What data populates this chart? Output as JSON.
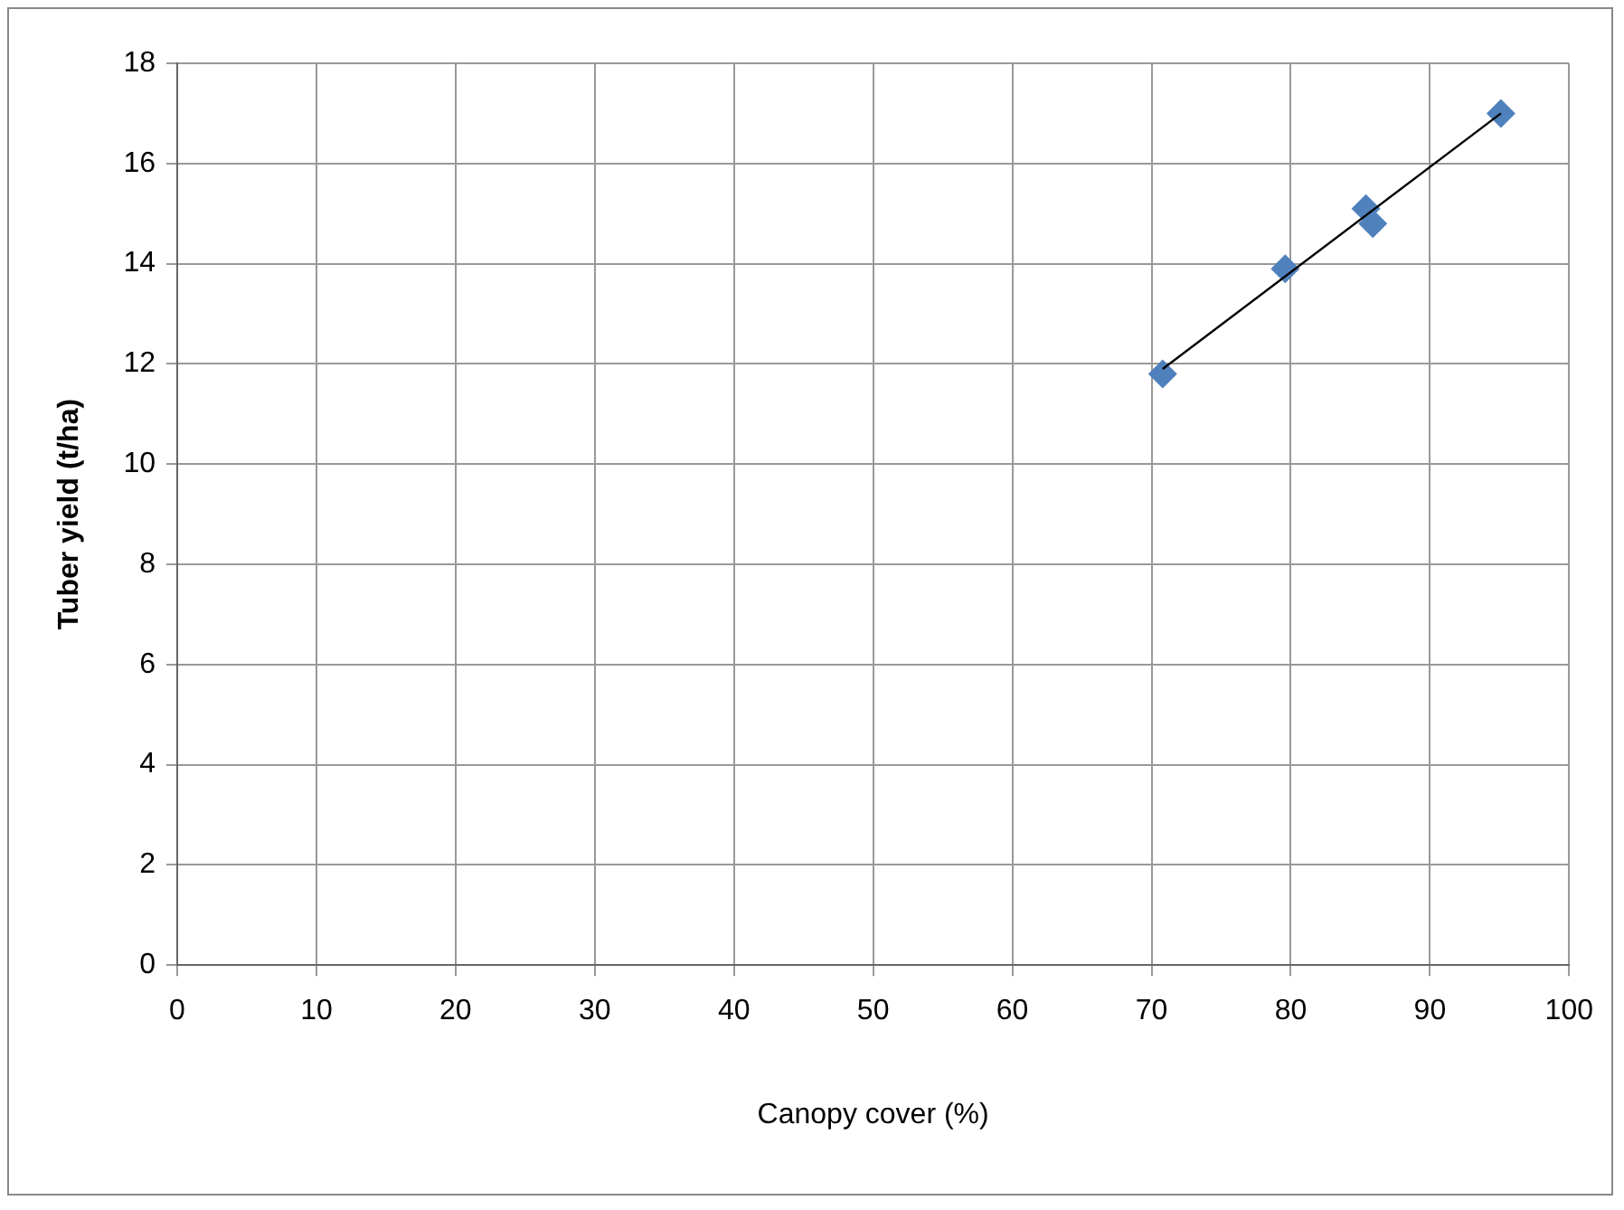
{
  "chart_data": {
    "type": "scatter",
    "xlabel": "Canopy cover (%)",
    "ylabel": "Tuber yield (t/ha)",
    "xlim": [
      0,
      100
    ],
    "xticks": [
      0,
      10,
      20,
      30,
      40,
      50,
      60,
      70,
      80,
      90,
      100
    ],
    "ylim": [
      0,
      18
    ],
    "yticks": [
      0,
      2,
      4,
      6,
      8,
      10,
      12,
      14,
      16,
      18
    ],
    "grid": true,
    "marker": "diamond",
    "legend": false,
    "series": [
      {
        "color": "#4f81bd",
        "x": [
          70.8,
          79.6,
          85.4,
          85.9,
          95.1
        ],
        "values": [
          11.8,
          13.9,
          15.1,
          14.8,
          17.0
        ]
      },
      {
        "type": "line",
        "color": "#000000",
        "marker": "none",
        "x": [
          70.8,
          95.1
        ],
        "values": [
          11.9,
          17.0
        ]
      }
    ]
  }
}
